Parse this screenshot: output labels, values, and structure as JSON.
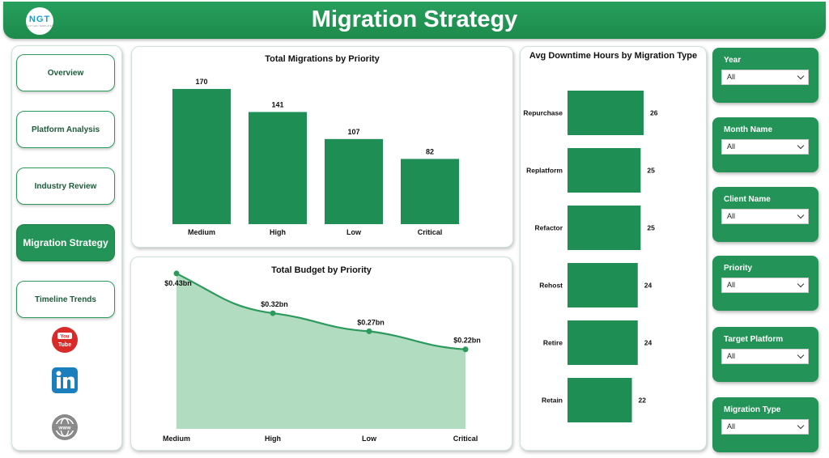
{
  "header": {
    "title": "Migration Strategy",
    "logo_text": "NGT",
    "logo_sub": "NEXT GEN TEMPLATES"
  },
  "nav": {
    "items": [
      {
        "label": "Overview",
        "active": false
      },
      {
        "label": "Platform Analysis",
        "active": false
      },
      {
        "label": "Industry Review",
        "active": false
      },
      {
        "label": "Migration Strategy",
        "active": true
      },
      {
        "label": "Timeline Trends",
        "active": false
      }
    ],
    "social": [
      "youtube-icon",
      "linkedin-icon",
      "web-icon"
    ]
  },
  "colors": {
    "brand": "#239357",
    "bar": "#1e8e54",
    "area": "#a8d8b8",
    "line": "#2c9a5c"
  },
  "charts": {
    "migrations": {
      "title": "Total Migrations by Priority"
    },
    "budget": {
      "title": "Total Budget by Priority"
    },
    "downtime": {
      "title": "Avg Downtime Hours by Migration Type"
    }
  },
  "chart_data": [
    {
      "type": "bar",
      "title": "Total Migrations by Priority",
      "categories": [
        "Medium",
        "High",
        "Low",
        "Critical"
      ],
      "values": [
        170,
        141,
        107,
        82
      ],
      "data_labels": [
        "170",
        "141",
        "107",
        "82"
      ],
      "ylim": [
        0,
        175
      ]
    },
    {
      "type": "area",
      "title": "Total Budget by Priority",
      "categories": [
        "Medium",
        "High",
        "Low",
        "Critical"
      ],
      "values": [
        0.43,
        0.32,
        0.27,
        0.22
      ],
      "data_labels": [
        "$0.43bn",
        "$0.32bn",
        "$0.27bn",
        "$0.22bn"
      ],
      "ylim": [
        0,
        0.45
      ]
    },
    {
      "type": "bar",
      "orientation": "horizontal",
      "title": "Avg Downtime Hours by Migration Type",
      "categories": [
        "Repurchase",
        "Replatform",
        "Refactor",
        "Rehost",
        "Retire",
        "Retain"
      ],
      "values": [
        26,
        25,
        25,
        24,
        24,
        22
      ],
      "data_labels": [
        "26",
        "25",
        "25",
        "24",
        "24",
        "22"
      ],
      "xlim": [
        0,
        26
      ]
    }
  ],
  "slicers": [
    {
      "label": "Year",
      "value": "All"
    },
    {
      "label": "Month Name",
      "value": "All"
    },
    {
      "label": "Client Name",
      "value": "All"
    },
    {
      "label": "Priority",
      "value": "All"
    },
    {
      "label": "Target Platform",
      "value": "All"
    },
    {
      "label": "Migration Type",
      "value": "All"
    }
  ]
}
